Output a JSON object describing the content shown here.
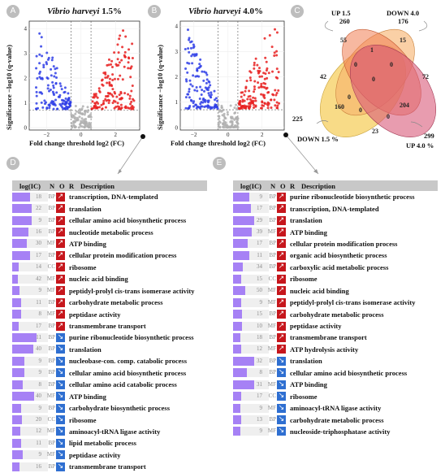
{
  "panel_badges": {
    "a": "A",
    "b": "B",
    "c": "C",
    "d": "D",
    "e": "E"
  },
  "volcano_common": {
    "ylabel": "Significance −log10 (q-value)",
    "xlabel": "Fold change threshold  log2 (FC)"
  },
  "chart_data": [
    {
      "type": "scatter",
      "id": "A",
      "title_species": "Vibrio harveyi",
      "title_cond": "1.5%",
      "xlabel": "Fold change threshold  log2 (FC)",
      "ylabel": "Significance −log10 (q-value)",
      "xlim": [
        -3,
        3.4
      ],
      "ylim": [
        -0.1,
        4.3
      ],
      "xticks": [
        -2,
        0,
        2
      ],
      "yticks": [
        0,
        1,
        2,
        3,
        4
      ],
      "threshold_x": [
        -0.58,
        0.58
      ],
      "threshold_y": 0.7,
      "series": [
        {
          "color": "#2f3ee6",
          "x_range": [
            -2.6,
            -0.6
          ],
          "y_range": [
            0.75,
            3.9
          ]
        },
        {
          "color": "#e82020",
          "x_range": [
            0.6,
            3.1
          ],
          "y_range": [
            0.75,
            4.0
          ]
        },
        {
          "color": "#b0b0b0",
          "x_range": [
            -0.6,
            0.6
          ],
          "y_range": [
            0,
            0.9
          ]
        }
      ]
    },
    {
      "type": "scatter",
      "id": "B",
      "title_species": "Vibrio harveyi",
      "title_cond": "4.0%",
      "xlabel": "Fold change threshold  log2 (FC)",
      "ylabel": "Significance −log10 (q-value)",
      "xlim": [
        -2.8,
        3.3
      ],
      "ylim": [
        -0.1,
        4.2
      ],
      "xticks": [
        -2,
        0,
        2
      ],
      "yticks": [
        0,
        1,
        2,
        3,
        4
      ],
      "threshold_x": [
        -0.58,
        0.58
      ],
      "threshold_y": 0.7,
      "series": [
        {
          "color": "#2f3ee6",
          "x_range": [
            -2.5,
            -0.6
          ],
          "y_range": [
            0.75,
            4.0
          ]
        },
        {
          "color": "#e82020",
          "x_range": [
            0.6,
            3.0
          ],
          "y_range": [
            0.75,
            3.9
          ]
        },
        {
          "color": "#b0b0b0",
          "x_range": [
            -0.6,
            0.6
          ],
          "y_range": [
            0,
            0.9
          ]
        }
      ]
    },
    {
      "type": "venn",
      "id": "C",
      "sets": [
        {
          "name": "UP 1.5",
          "total": "260",
          "color": "#f6c36b"
        },
        {
          "name": "DOWN 4.0",
          "total": "176",
          "color": "#f08c5a"
        },
        {
          "name": "DOWN 1.5 %",
          "total": "225",
          "color": "#f5cf5f"
        },
        {
          "name": "UP 4.0 %",
          "total": "299",
          "color": "#d95a7a"
        }
      ],
      "region_counts": [
        "55",
        "15",
        "1",
        "0",
        "72",
        "42",
        "0",
        "0",
        "0",
        "160",
        "204",
        "0",
        "0",
        "23"
      ]
    }
  ],
  "table_d": {
    "headers": {
      "log": "log(IC)",
      "n": "N",
      "o": "O",
      "r": "R",
      "desc": "Description"
    },
    "rows": [
      {
        "n": "18",
        "o": "BP",
        "r": "up",
        "ic": 0.5,
        "desc": "transcription, DNA-templated"
      },
      {
        "n": "22",
        "o": "BP",
        "r": "up",
        "ic": 0.55,
        "desc": "translation"
      },
      {
        "n": "9",
        "o": "BP",
        "r": "up",
        "ic": 0.55,
        "desc": "cellular amino acid biosynthetic process"
      },
      {
        "n": "16",
        "o": "BP",
        "r": "up",
        "ic": 0.45,
        "desc": "nucleotide metabolic process"
      },
      {
        "n": "30",
        "o": "MF",
        "r": "up",
        "ic": 0.4,
        "desc": "ATP binding"
      },
      {
        "n": "17",
        "o": "BP",
        "r": "up",
        "ic": 0.5,
        "desc": "cellular protein modification process"
      },
      {
        "n": "14",
        "o": "CC",
        "r": "up",
        "ic": 0.18,
        "desc": "ribosome"
      },
      {
        "n": "42",
        "o": "MF",
        "r": "up",
        "ic": 0.15,
        "desc": "nucleic acid binding"
      },
      {
        "n": "9",
        "o": "MF",
        "r": "up",
        "ic": 0.2,
        "desc": "peptidyl-prolyl cis-trans isomerase activity"
      },
      {
        "n": "11",
        "o": "BP",
        "r": "up",
        "ic": 0.25,
        "desc": "carbohydrate metabolic process"
      },
      {
        "n": "8",
        "o": "MF",
        "r": "up",
        "ic": 0.25,
        "desc": "peptidase activity"
      },
      {
        "n": "17",
        "o": "BP",
        "r": "up",
        "ic": 0.18,
        "desc": "transmembrane transport"
      },
      {
        "n": "11",
        "o": "BP",
        "r": "down",
        "ic": 0.68,
        "desc": "purine ribonucleotide biosynthetic process"
      },
      {
        "n": "40",
        "o": "BP",
        "r": "down",
        "ic": 0.6,
        "desc": "translation"
      },
      {
        "n": "9",
        "o": "BP",
        "r": "down",
        "ic": 0.35,
        "desc": "nucleobase-con. comp. catabolic process"
      },
      {
        "n": "9",
        "o": "BP",
        "r": "down",
        "ic": 0.35,
        "desc": "cellular amino acid biosynthetic process"
      },
      {
        "n": "8",
        "o": "BP",
        "r": "down",
        "ic": 0.3,
        "desc": "cellular amino acid catabolic process"
      },
      {
        "n": "40",
        "o": "MF",
        "r": "down",
        "ic": 0.62,
        "desc": "ATP binding"
      },
      {
        "n": "9",
        "o": "BP",
        "r": "down",
        "ic": 0.25,
        "desc": "carbohydrate biosynthetic process"
      },
      {
        "n": "20",
        "o": "CC",
        "r": "down",
        "ic": 0.28,
        "desc": "ribosome"
      },
      {
        "n": "12",
        "o": "MF",
        "r": "down",
        "ic": 0.22,
        "desc": "aminoacyl-tRNA ligase activity"
      },
      {
        "n": "11",
        "o": "BP",
        "r": "down",
        "ic": 0.25,
        "desc": "lipid metabolic process"
      },
      {
        "n": "9",
        "o": "MF",
        "r": "down",
        "ic": 0.3,
        "desc": "peptidase activity"
      },
      {
        "n": "16",
        "o": "BP",
        "r": "down",
        "ic": 0.2,
        "desc": "transmembrane transport"
      }
    ]
  },
  "table_e": {
    "headers": {
      "log": "log(IC)",
      "n": "N",
      "o": "O",
      "r": "R",
      "desc": "Description"
    },
    "rows": [
      {
        "n": "9",
        "o": "BP",
        "r": "up",
        "ic": 0.45,
        "desc": "purine ribonucleotide biosynthetic process"
      },
      {
        "n": "17",
        "o": "BP",
        "r": "up",
        "ic": 0.5,
        "desc": "transcription, DNA-templated"
      },
      {
        "n": "29",
        "o": "BP",
        "r": "up",
        "ic": 0.6,
        "desc": "translation"
      },
      {
        "n": "39",
        "o": "MF",
        "r": "up",
        "ic": 0.52,
        "desc": "ATP binding"
      },
      {
        "n": "17",
        "o": "BP",
        "r": "up",
        "ic": 0.42,
        "desc": "cellular protein modification process"
      },
      {
        "n": "11",
        "o": "BP",
        "r": "up",
        "ic": 0.45,
        "desc": "organic acid biosynthetic process"
      },
      {
        "n": "34",
        "o": "BP",
        "r": "up",
        "ic": 0.28,
        "desc": "carboxylic acid metabolic process"
      },
      {
        "n": "15",
        "o": "CC",
        "r": "up",
        "ic": 0.22,
        "desc": "ribosome"
      },
      {
        "n": "50",
        "o": "MF",
        "r": "up",
        "ic": 0.35,
        "desc": "nucleic acid binding"
      },
      {
        "n": "9",
        "o": "MF",
        "r": "up",
        "ic": 0.22,
        "desc": "peptidyl-prolyl cis-trans isomerase activity"
      },
      {
        "n": "15",
        "o": "BP",
        "r": "up",
        "ic": 0.25,
        "desc": "carbohydrate metabolic process"
      },
      {
        "n": "10",
        "o": "MF",
        "r": "up",
        "ic": 0.25,
        "desc": "peptidase activity"
      },
      {
        "n": "18",
        "o": "BP",
        "r": "up",
        "ic": 0.2,
        "desc": "transmembrane transport"
      },
      {
        "n": "12",
        "o": "MF",
        "r": "up",
        "ic": 0.22,
        "desc": "ATP hydrolysis activity"
      },
      {
        "n": "32",
        "o": "BP",
        "r": "down",
        "ic": 0.6,
        "desc": "translation"
      },
      {
        "n": "8",
        "o": "BP",
        "r": "down",
        "ic": 0.38,
        "desc": "cellular amino acid biosynthetic process"
      },
      {
        "n": "31",
        "o": "MF",
        "r": "down",
        "ic": 0.58,
        "desc": "ATP binding"
      },
      {
        "n": "17",
        "o": "CC",
        "r": "down",
        "ic": 0.22,
        "desc": "ribosome"
      },
      {
        "n": "9",
        "o": "MF",
        "r": "down",
        "ic": 0.2,
        "desc": "aminoacyl-tRNA ligase activity"
      },
      {
        "n": "13",
        "o": "BP",
        "r": "down",
        "ic": 0.22,
        "desc": "carbohydrate metabolic process"
      },
      {
        "n": "9",
        "o": "MF",
        "r": "down",
        "ic": 0.2,
        "desc": "nucleoside-triphosphatase activity"
      }
    ]
  }
}
